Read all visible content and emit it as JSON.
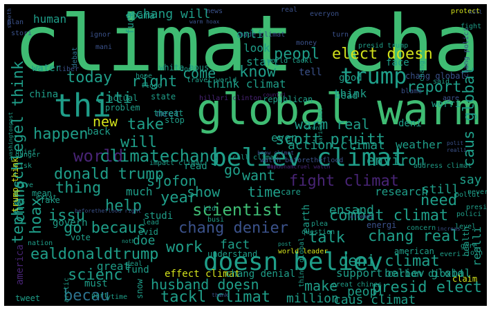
{
  "palette": {
    "background": "#000000",
    "yellow": "#d3e21b",
    "lightgreen": "#7ad151",
    "green": "#3fbc73",
    "teal": "#1f9e89",
    "blue": "#2c728e",
    "indigo": "#3b528b",
    "purple": "#482475"
  },
  "words": [
    "climat chang",
    "global warm",
    "believ climat",
    "doesn believ",
    "trump",
    "thi",
    "elect doesn",
    "peopl",
    "chang will",
    "obama",
    "human",
    "fuck",
    "protect",
    "kill",
    "everyon",
    "real",
    "news",
    "fight",
    "plan",
    "stori",
    "ignor",
    "mani",
    "debat",
    "made climat",
    "turn",
    "money",
    "presid trump",
    "chang polici",
    "warm hoax",
    "tephenschlegel think",
    "scott pruitt",
    "warm real",
    "world",
    "climatechang",
    "donald trump",
    "environ",
    "fight climat",
    "sjofon",
    "show",
    "time",
    "say",
    "scientist",
    "ensand",
    "need",
    "chang denier",
    "chang real",
    "combat climat",
    "talk",
    "ealdonaldtrump",
    "deni climat",
    "doe",
    "scienc",
    "husband doesn",
    "make",
    "presid elect",
    "tackl climat",
    "becau",
    "caus climat",
    "million",
    "peopl",
    "report",
    "think",
    "caus global",
    "come",
    "know",
    "right",
    "today",
    "citi",
    "new",
    "take",
    "happen",
    "will",
    "go",
    "want",
    "thing",
    "hoax",
    "chang",
    "issu",
    "go becaus",
    "work",
    "fact",
    "help",
    "year",
    "much",
    "even",
    "action climat",
    "weather",
    "research",
    "earth",
    "still",
    "energi",
    "good",
    "head",
    "tell",
    "face",
    "think climat",
    "look",
    "start",
    "onli",
    "water",
    "liber",
    "china",
    "white hous",
    "travel world",
    "world tackl",
    "chang global",
    "chang",
    "said",
    "blame",
    "agre",
    "worri",
    "deni",
    "meet",
    "back",
    "stop",
    "call climat",
    "impact climat",
    "read",
    "address climat",
    "pollut",
    "presid",
    "polici",
    "level",
    "realli",
    "health",
    "join",
    "gore",
    "everi",
    "american",
    "concern",
    "plea",
    "question",
    "think global",
    "believ global",
    "support",
    "carbon dioxid",
    "effect climat",
    "chang denial",
    "understand",
    "nation",
    "vote",
    "govern",
    "studi",
    "lead",
    "evid",
    "busi",
    "must",
    "great",
    "deal",
    "fund",
    "tweet",
    "ytime",
    "part",
    "arctic",
    "snow",
    "mean",
    "fake",
    "live",
    "exist",
    "risk",
    "danger",
    "chief",
    "trump think",
    "america",
    "washingtonpost",
    "someth",
    "hope",
    "doe",
    "republican",
    "hillari clinton",
    "state",
    "flood",
    "threat",
    "problem",
    "actual",
    "post",
    "world leader",
    "kid",
    "claim",
    "creat chines",
    "thank",
    "noth",
    "beforetheflood right",
    "watch beforetheflood",
    "know climat",
    "care",
    "never",
    "polit",
    "realli",
    "increas",
    "alreadi",
    "countri",
    "pari climat",
    "wrong",
    "atpoonamcruel watch",
    "warn",
    "edoicaprio travel",
    "vote"
  ]
}
